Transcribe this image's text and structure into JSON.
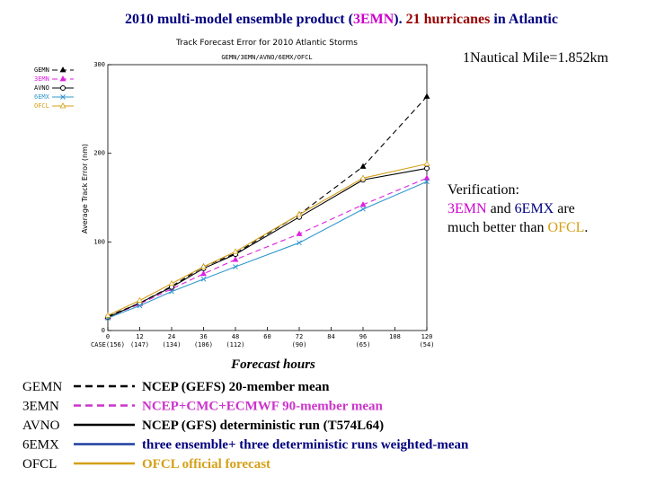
{
  "slide": {
    "title_parts": [
      {
        "text": "2010 multi-model ensemble product (",
        "color": "#000080"
      },
      {
        "text": "3EMN",
        "color": "#cc00cc"
      },
      {
        "text": ").  ",
        "color": "#000080"
      },
      {
        "text": "21 hurricanes",
        "color": "#990000"
      },
      {
        "text": " in Atlantic",
        "color": "#000080"
      }
    ],
    "scale_note": "1Nautical Mile=1.852km",
    "verification": [
      [
        {
          "text": "Verification:",
          "color": "#000000"
        }
      ],
      [
        {
          "text": "3EMN",
          "color": "#cc00cc"
        },
        {
          "text": " and ",
          "color": "#000000"
        },
        {
          "text": "6EMX",
          "color": "#000080"
        },
        {
          "text": " are",
          "color": "#000000"
        }
      ],
      [
        {
          "text": "much better than ",
          "color": "#000000"
        },
        {
          "text": "OFCL",
          "color": "#d4a017"
        },
        {
          "text": ".",
          "color": "#000000"
        }
      ]
    ],
    "model_key": [
      {
        "name": "GEMN",
        "description": "NCEP (GEFS) 20-member mean",
        "line_color": "#000000",
        "dash": "8,5",
        "text_color": "#000000"
      },
      {
        "name": "3EMN",
        "description": "NCEP+CMC+ECMWF 90-member mean",
        "line_color": "#cc33cc",
        "dash": "8,5",
        "text_color": "#cc33cc"
      },
      {
        "name": "AVNO",
        "description": "NCEP (GFS) deterministic run (T574L64)",
        "line_color": "#000000",
        "dash": "none",
        "text_color": "#000000"
      },
      {
        "name": "6EMX",
        "description": "three ensemble+ three deterministic runs weighted-mean",
        "line_color": "#1f3fa0",
        "dash": "none",
        "text_color": "#000080"
      },
      {
        "name": "OFCL",
        "description": "OFCL official forecast",
        "line_color": "#d4a017",
        "dash": "none",
        "text_color": "#d4a017"
      }
    ]
  },
  "chart_data": {
    "type": "line",
    "title": "Track Forecast Error for 2010 Atlantic Storms",
    "subtitle": "GEMN/3EMN/AVNO/6EMX/OFCL",
    "ylabel": "Average Track Error (nm)",
    "xlabel": "Forecast hours",
    "x": [
      0,
      12,
      24,
      36,
      48,
      72,
      96,
      120
    ],
    "x_cases": [
      "CASE(156)",
      "(147)",
      "(134)",
      "(106)",
      "(112)",
      "(90)",
      "(65)",
      "(54)"
    ],
    "xlim": [
      0,
      120
    ],
    "xticks": [
      0,
      12,
      24,
      36,
      48,
      60,
      72,
      84,
      96,
      108,
      120
    ],
    "ylim": [
      0,
      300
    ],
    "yticks": [
      0,
      100,
      200,
      300
    ],
    "series": [
      {
        "name": "GEMN",
        "color": "#000000",
        "dash": "6,4",
        "marker": "triangle-filled",
        "values": [
          16,
          31,
          50,
          72,
          87,
          131,
          185,
          264
        ]
      },
      {
        "name": "3EMN",
        "color": "#dd22dd",
        "dash": "6,4",
        "marker": "triangle-filled",
        "values": [
          15,
          30,
          47,
          64,
          80,
          109,
          142,
          172
        ]
      },
      {
        "name": "AVNO",
        "color": "#000000",
        "dash": "none",
        "marker": "circle",
        "values": [
          15,
          31,
          49,
          70,
          86,
          128,
          170,
          183
        ]
      },
      {
        "name": "6EMX",
        "color": "#3399cc",
        "dash": "none",
        "marker": "cross",
        "values": [
          14,
          28,
          44,
          58,
          72,
          99,
          137,
          168
        ]
      },
      {
        "name": "OFCL",
        "color": "#d4a017",
        "dash": "none",
        "marker": "triangle",
        "values": [
          17,
          34,
          53,
          72,
          89,
          131,
          172,
          188
        ]
      }
    ]
  }
}
